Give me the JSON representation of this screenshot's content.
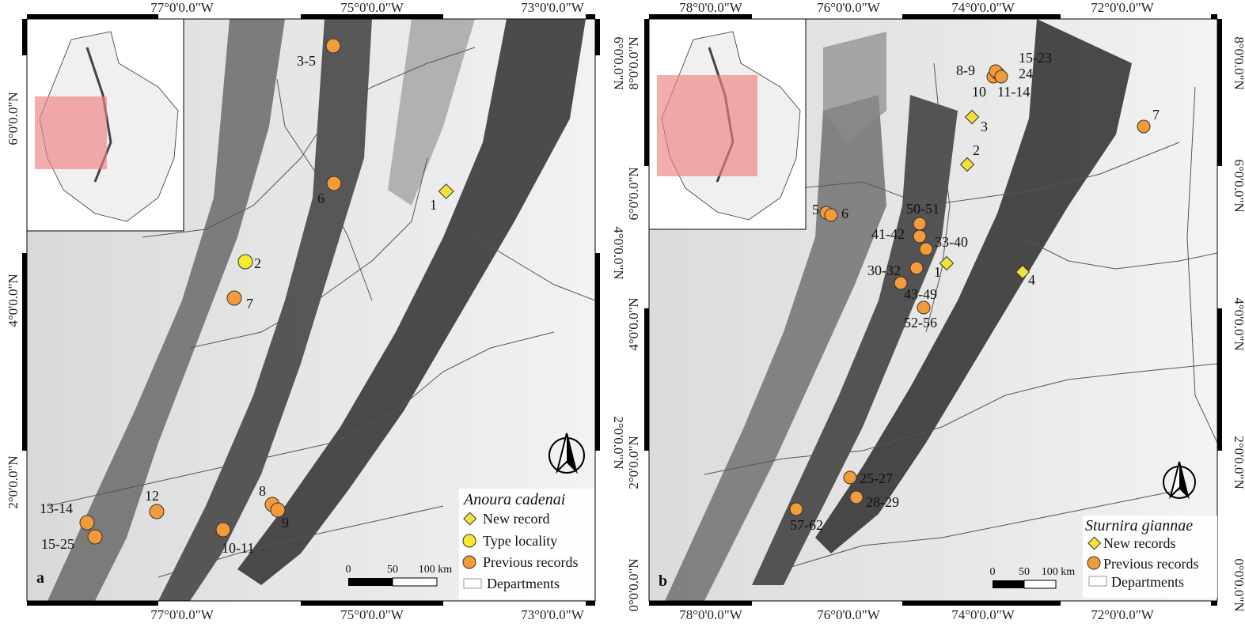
{
  "panel_a": {
    "letter": "a",
    "lon_ticks": [
      "77°0'0.0\"W",
      "75°0'0.0\"W",
      "73°0'0.0\"W"
    ],
    "lat_ticks": [
      "6°0'0.0\"N",
      "4°0'0.0\"N",
      "2°0'0.0\"N"
    ],
    "legend": {
      "title": "Anoura cadenai",
      "items": [
        "New record",
        "Type locality",
        "Previous records",
        "Departments"
      ]
    },
    "scale": {
      "labels": [
        "0",
        "50",
        "100 km"
      ]
    },
    "points": [
      {
        "label": "3-5",
        "type": "previous"
      },
      {
        "label": "6",
        "type": "previous"
      },
      {
        "label": "1",
        "type": "new"
      },
      {
        "label": "2",
        "type": "type"
      },
      {
        "label": "7",
        "type": "previous"
      },
      {
        "label": "12",
        "type": "previous"
      },
      {
        "label": "13-14",
        "type": "previous"
      },
      {
        "label": "15-25",
        "type": "previous"
      },
      {
        "label": "10-11",
        "type": "previous"
      },
      {
        "label": "8",
        "type": "previous"
      },
      {
        "label": "9",
        "type": "previous"
      }
    ]
  },
  "panel_b": {
    "letter": "b",
    "lon_ticks": [
      "78°0'0.0\"W",
      "76°0'0.0\"W",
      "74°0'0.0\"W",
      "72°0'0.0\"W"
    ],
    "lat_ticks": [
      "8°0'0.0\"N",
      "6°0'0.0\"N",
      "4°0'0.0\"N",
      "2°0'0.0\"N",
      "0°0'0.0\"N"
    ],
    "legend": {
      "title": "Sturnira giannae",
      "items": [
        "New records",
        "Previous records",
        "Departments"
      ]
    },
    "scale": {
      "labels": [
        "0",
        "50",
        "100 km"
      ]
    },
    "labels": [
      "15-23",
      "8-9",
      "24",
      "10",
      "11-14",
      "3",
      "7",
      "2",
      "5",
      "6",
      "50-51",
      "41-42",
      "33-40",
      "30-32",
      "1",
      "4",
      "43-49",
      "52-56",
      "25-27",
      "28-29",
      "57-62"
    ]
  },
  "colors": {
    "previous": "#f39a3a",
    "new": "#f2e13a",
    "type": "#f5ea2e",
    "inset_highlight": "#f08080"
  }
}
